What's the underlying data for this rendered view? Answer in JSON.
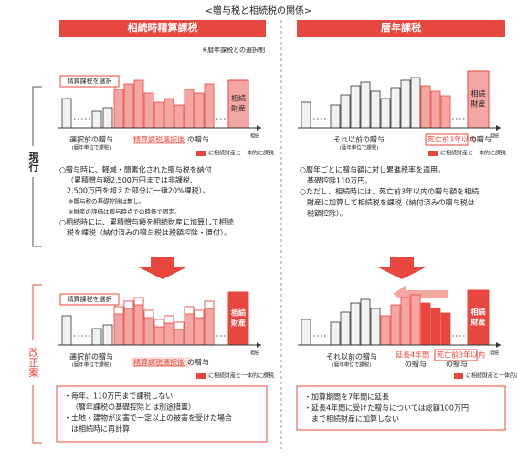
{
  "title": "<贈与税と相続税の関係>",
  "columns": [
    {
      "header": "相続時精算課税",
      "note": "※暦年課税との選択制"
    },
    {
      "header": "暦年課税"
    }
  ],
  "rows": [
    {
      "label": "現行"
    },
    {
      "label": "改正案"
    }
  ],
  "current": {
    "left": {
      "select_label": "精算課税を選択",
      "estate": "相続財産",
      "axis_end": "相続",
      "before": "選択前の贈与",
      "before_note": "(暦年単位で課税)",
      "after_highlight": "精算課税選択後",
      "after_rest": "の贈与",
      "legend": "に相続財産と一体的に課税",
      "text": [
        "○贈与時に、軽減・簡素化された贈与税を納付",
        "（累積贈与額2,500万円までは非課税、",
        "2,500万円を超えた部分に一律20%課税）。",
        "※贈与税の基礎控除は無し。",
        "※財産の評価は贈与時点での時価で固定。",
        "○相続時には、累積贈与額を相続財産に加算して相続",
        "税を課税（納付済みの贈与税は税額控除・還付）。"
      ]
    },
    "right": {
      "estate": "相続財産",
      "axis_end": "相続",
      "before": "それ以前の贈与",
      "before_note": "(暦年単位で課税)",
      "recent_highlight": "死亡前3年以内",
      "recent_rest": "の贈与",
      "legend": "に相続財産と一体的に課税",
      "text": [
        "○暦年ごとに贈与額に対し累進税率を適用。",
        "基礎控除110万円。",
        "○ただし、相続時には、死亡前3年以内の贈与額を相続",
        "財産に加算して相続税を課税（納付済みの贈与税は",
        "税額控除）。"
      ]
    }
  },
  "proposal": {
    "left": {
      "select_label": "精算課税を選択",
      "estate": "相続財産",
      "axis_end": "相続",
      "before": "選択前の贈与",
      "before_note": "(暦年単位で課税)",
      "after_highlight": "精算課税選択後",
      "after_rest": "の贈与",
      "legend": "に相続財産と一体的に課税",
      "text": [
        "・毎年、110万円まで課税しない",
        "（暦年課税の基礎控除とは別途措置）",
        "・土地・建物が災害で一定以上の被害を受けた場合",
        "は相続時に再計算"
      ]
    },
    "right": {
      "estate": "相続財産",
      "axis_end": "相続",
      "before": "それ以前の贈与",
      "before_note": "(暦年単位で課税)",
      "extended_highlight": "延長4年間",
      "extended_rest": "の贈与",
      "recent_highlight": "死亡前3年以内",
      "recent_rest": "の贈与",
      "legend": "に相続財産と一体的に課税",
      "text": [
        "・加算期間を7年間に延長",
        "・延長4年間に受けた贈与については総額100万円",
        "まで相続財産に加算しない"
      ]
    }
  }
}
